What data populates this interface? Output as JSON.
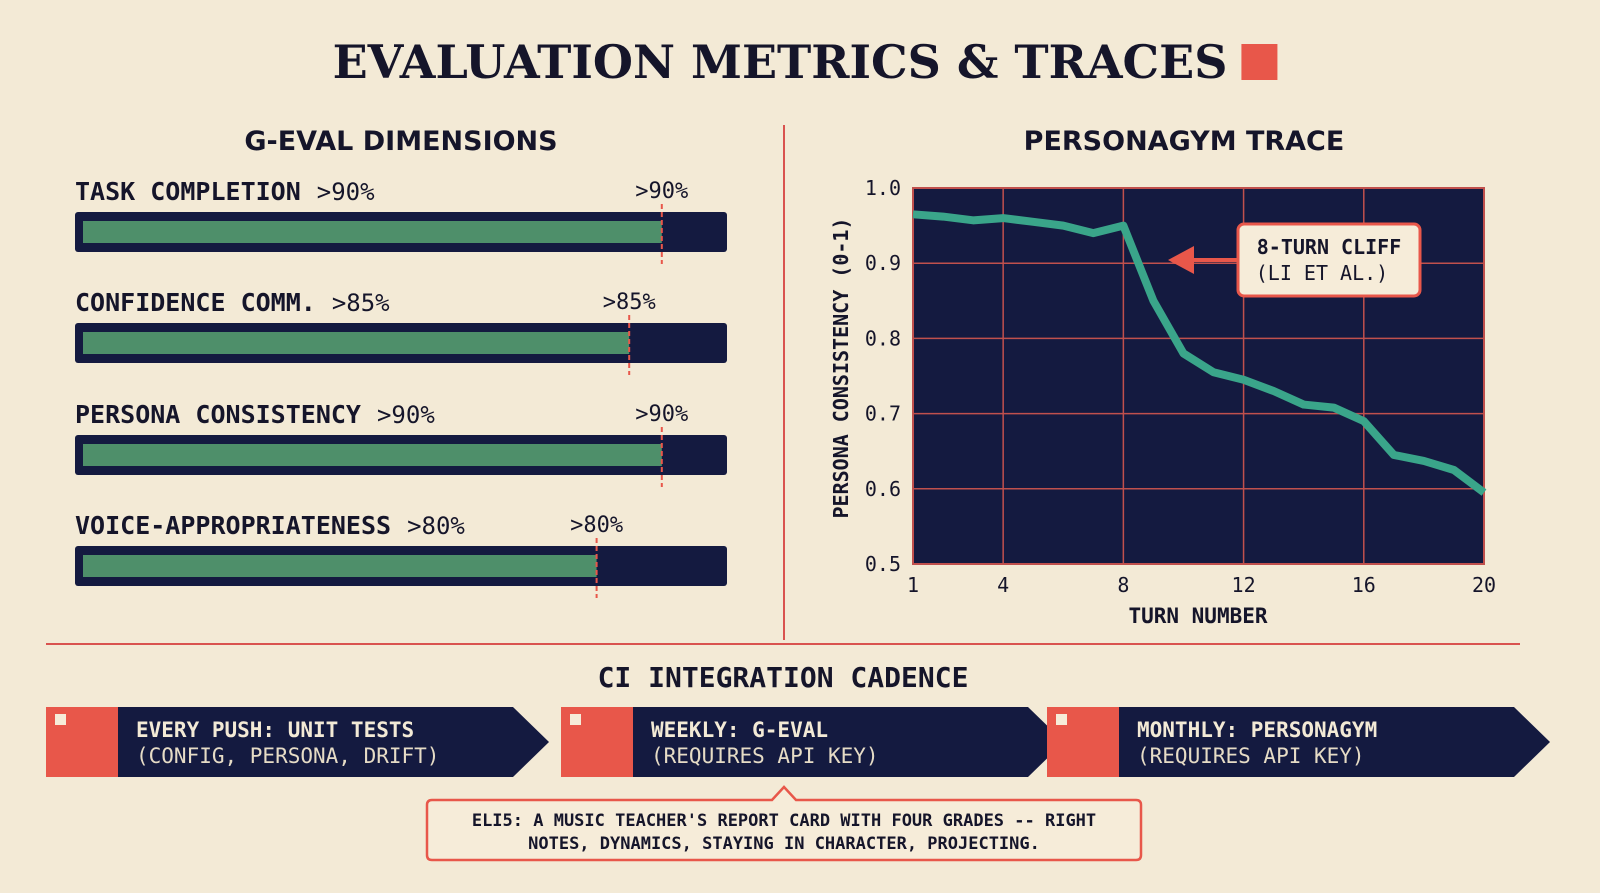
{
  "title": "EVALUATION METRICS & TRACES",
  "chart_data": [
    {
      "type": "bar",
      "title": "G-EVAL DIMENSIONS",
      "categories": [
        "TASK COMPLETION",
        "CONFIDENCE COMM.",
        "PERSONA CONSISTENCY",
        "VOICE-APPROPRIATENESS"
      ],
      "values": [
        90,
        85,
        90,
        80
      ],
      "value_labels": [
        ">90%",
        ">85%",
        ">90%",
        ">80%"
      ],
      "xlim": [
        0,
        100
      ],
      "color": "#4e8f6a"
    },
    {
      "type": "line",
      "title": "PERSONAGYM TRACE",
      "x": [
        1,
        2,
        3,
        4,
        5,
        6,
        7,
        8,
        9,
        10,
        11,
        12,
        13,
        14,
        15,
        16,
        17,
        18,
        19,
        20
      ],
      "values": [
        0.965,
        0.962,
        0.957,
        0.96,
        0.955,
        0.95,
        0.94,
        0.95,
        0.85,
        0.78,
        0.755,
        0.745,
        0.73,
        0.712,
        0.708,
        0.69,
        0.645,
        0.637,
        0.625,
        0.595
      ],
      "color": "#3aa58a",
      "xlim": [
        1,
        20
      ],
      "xticks": [
        1,
        4,
        8,
        12,
        16,
        20
      ],
      "ylim": [
        0.5,
        1.0
      ],
      "yticks": [
        0.5,
        0.6,
        0.7,
        0.8,
        0.9,
        {
          "value": 1,
          "label": "1.0"
        }
      ],
      "grid": true,
      "xlabel": "TURN NUMBER",
      "ylabel": "PERSONA CONSISTENCY (0-1)",
      "annotation": [
        "8-TURN CLIFF",
        "(LI ET AL.)"
      ]
    }
  ],
  "ci": {
    "title": "CI INTEGRATION CADENCE",
    "steps": [
      [
        "EVERY PUSH: UNIT TESTS",
        "(CONFIG, PERSONA, DRIFT)"
      ],
      [
        "WEEKLY: G-EVAL",
        "(REQUIRES API KEY)"
      ],
      [
        "MONTHLY: PERSONAGYM",
        "(REQUIRES API KEY)"
      ]
    ]
  },
  "eli5": [
    "ELI5: A MUSIC TEACHER'S REPORT CARD WITH FOUR GRADES -- RIGHT",
    "NOTES, DYNAMICS, STAYING IN CHARACTER, PROJECTING."
  ]
}
